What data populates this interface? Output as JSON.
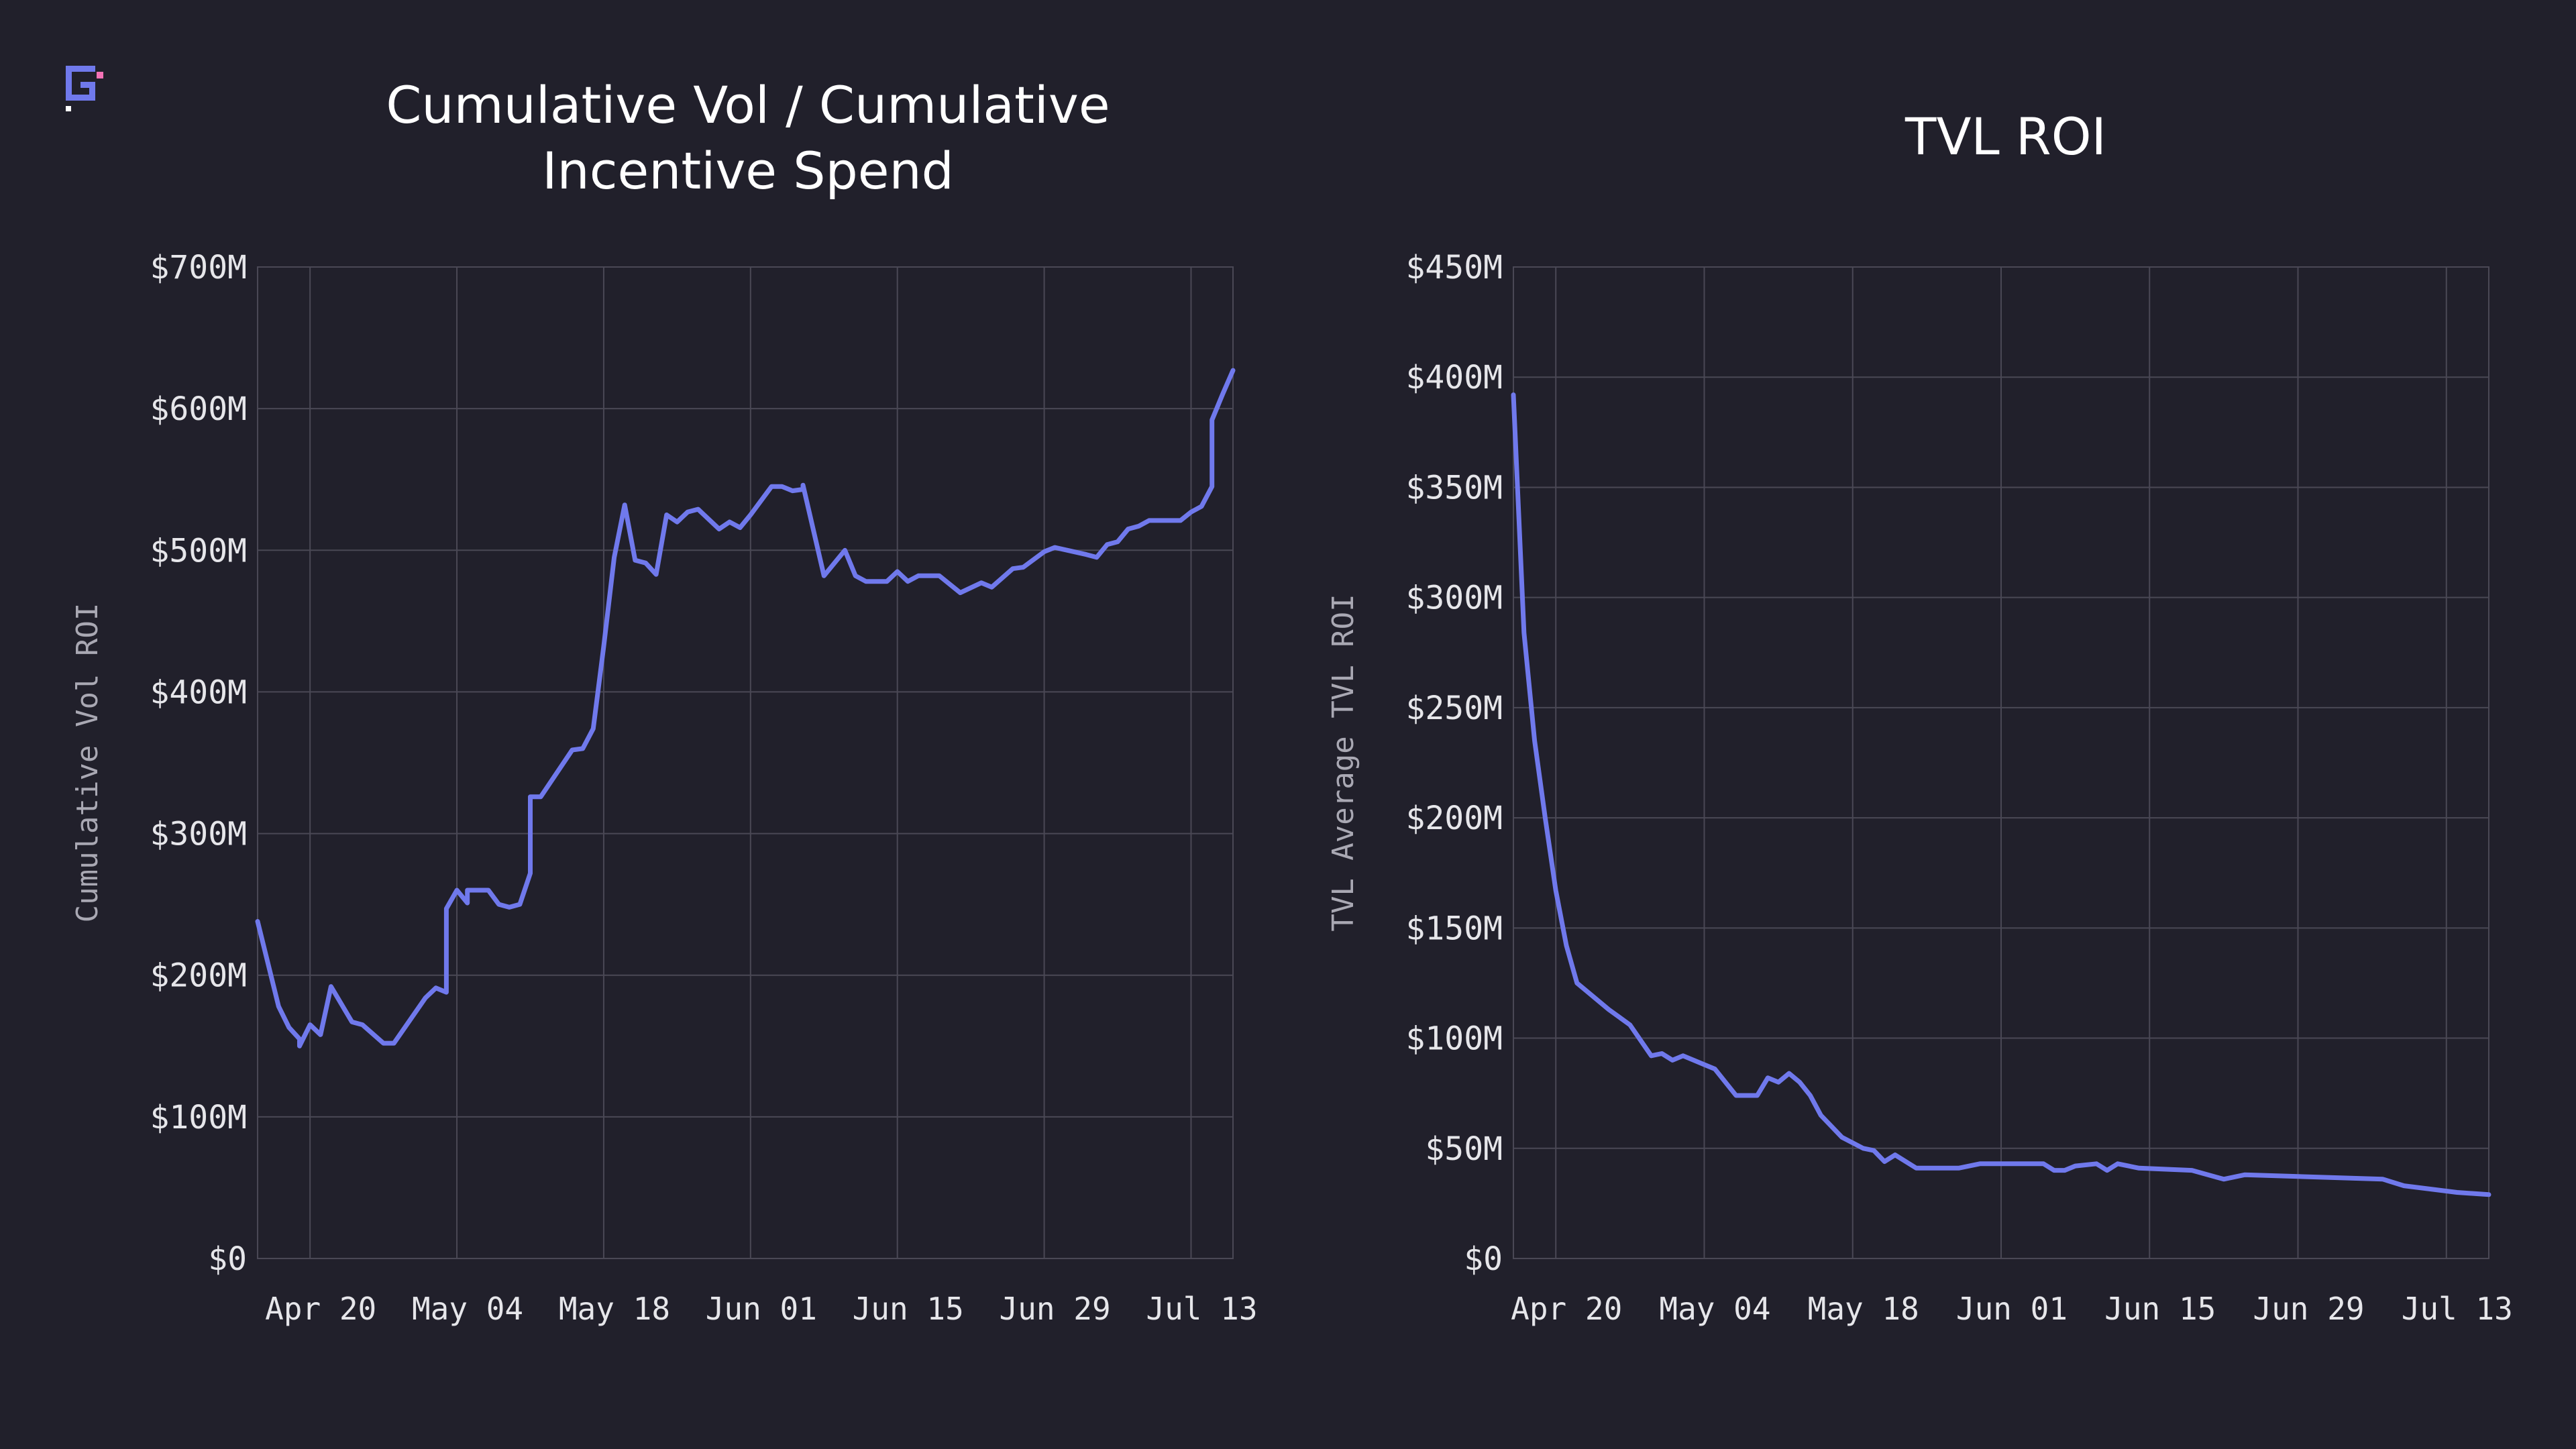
{
  "colors": {
    "background": "#21202b",
    "line": "#7079ec",
    "grid": "#4a4855",
    "text": "#e6e6ea",
    "title": "#ffffff",
    "logo_primary": "#7079ec",
    "logo_accent": "#f472b6"
  },
  "logo": {
    "icon": "brand-logo-icon"
  },
  "chart_data": [
    {
      "type": "line",
      "title": "Cumulative Vol / Cumulative Incentive Spend",
      "title_lines": [
        "Cumulative Vol / Cumulative",
        "Incentive Spend"
      ],
      "xlabel": "",
      "ylabel": "Cumulative Vol ROI",
      "x_axis": {
        "type": "date",
        "range": [
          "2025-04-15",
          "2025-07-17"
        ],
        "ticks": [
          {
            "date": "2025-04-20",
            "label": "Apr 20"
          },
          {
            "date": "2025-05-04",
            "label": "May 04"
          },
          {
            "date": "2025-05-18",
            "label": "May 18"
          },
          {
            "date": "2025-06-01",
            "label": "Jun 01"
          },
          {
            "date": "2025-06-15",
            "label": "Jun 15"
          },
          {
            "date": "2025-06-29",
            "label": "Jun 29"
          },
          {
            "date": "2025-07-13",
            "label": "Jul 13"
          }
        ]
      },
      "y_axis": {
        "range": [
          0,
          700
        ],
        "unit": "$M",
        "ticks": [
          {
            "value": 0,
            "label": "$0"
          },
          {
            "value": 100,
            "label": "$100M"
          },
          {
            "value": 200,
            "label": "$200M"
          },
          {
            "value": 300,
            "label": "$300M"
          },
          {
            "value": 400,
            "label": "$400M"
          },
          {
            "value": 500,
            "label": "$500M"
          },
          {
            "value": 600,
            "label": "$600M"
          },
          {
            "value": 700,
            "label": "$700M"
          }
        ]
      },
      "grid": true,
      "legend": "none",
      "series": [
        {
          "points": [
            [
              "2025-04-15",
              238
            ],
            [
              "2025-04-17",
              178
            ],
            [
              "2025-04-18",
              163
            ],
            [
              "2025-04-19",
              155
            ],
            [
              "2025-04-19",
              150
            ],
            [
              "2025-04-20",
              165
            ],
            [
              "2025-04-21",
              158
            ],
            [
              "2025-04-22",
              192
            ],
            [
              "2025-04-24",
              167
            ],
            [
              "2025-04-25",
              165
            ],
            [
              "2025-04-27",
              152
            ],
            [
              "2025-04-28",
              152
            ],
            [
              "2025-05-01",
              184
            ],
            [
              "2025-05-02",
              191
            ],
            [
              "2025-05-03",
              188
            ],
            [
              "2025-05-03",
              247
            ],
            [
              "2025-05-04",
              260
            ],
            [
              "2025-05-05",
              251
            ],
            [
              "2025-05-05",
              260
            ],
            [
              "2025-05-07",
              260
            ],
            [
              "2025-05-08",
              250
            ],
            [
              "2025-05-09",
              248
            ],
            [
              "2025-05-10",
              250
            ],
            [
              "2025-05-11",
              272
            ],
            [
              "2025-05-11",
              326
            ],
            [
              "2025-05-12",
              326
            ],
            [
              "2025-05-15",
              359
            ],
            [
              "2025-05-16",
              360
            ],
            [
              "2025-05-17",
              374
            ],
            [
              "2025-05-18",
              432
            ],
            [
              "2025-05-19",
              495
            ],
            [
              "2025-05-20",
              532
            ],
            [
              "2025-05-21",
              493
            ],
            [
              "2025-05-22",
              491
            ],
            [
              "2025-05-23",
              483
            ],
            [
              "2025-05-24",
              525
            ],
            [
              "2025-05-25",
              520
            ],
            [
              "2025-05-26",
              527
            ],
            [
              "2025-05-27",
              529
            ],
            [
              "2025-05-29",
              515
            ],
            [
              "2025-05-30",
              520
            ],
            [
              "2025-05-31",
              516
            ],
            [
              "2025-06-01",
              525
            ],
            [
              "2025-06-03",
              545
            ],
            [
              "2025-06-04",
              545
            ],
            [
              "2025-06-05",
              542
            ],
            [
              "2025-06-06",
              543
            ],
            [
              "2025-06-06",
              546
            ],
            [
              "2025-06-08",
              482
            ],
            [
              "2025-06-10",
              500
            ],
            [
              "2025-06-11",
              482
            ],
            [
              "2025-06-12",
              478
            ],
            [
              "2025-06-14",
              478
            ],
            [
              "2025-06-15",
              485
            ],
            [
              "2025-06-16",
              478
            ],
            [
              "2025-06-17",
              482
            ],
            [
              "2025-06-19",
              482
            ],
            [
              "2025-06-21",
              470
            ],
            [
              "2025-06-23",
              477
            ],
            [
              "2025-06-24",
              474
            ],
            [
              "2025-06-26",
              487
            ],
            [
              "2025-06-27",
              488
            ],
            [
              "2025-06-29",
              499
            ],
            [
              "2025-06-30",
              502
            ],
            [
              "2025-07-03",
              497
            ],
            [
              "2025-07-04",
              495
            ],
            [
              "2025-07-05",
              504
            ],
            [
              "2025-07-06",
              506
            ],
            [
              "2025-07-07",
              515
            ],
            [
              "2025-07-08",
              517
            ],
            [
              "2025-07-09",
              521
            ],
            [
              "2025-07-12",
              521
            ],
            [
              "2025-07-13",
              527
            ],
            [
              "2025-07-14",
              531
            ],
            [
              "2025-07-15",
              545
            ],
            [
              "2025-07-15",
              592
            ],
            [
              "2025-07-16",
              610
            ],
            [
              "2025-07-17",
              627
            ]
          ]
        }
      ]
    },
    {
      "type": "line",
      "title": "TVL ROI",
      "xlabel": "",
      "ylabel": "TVL Average TVL ROI",
      "x_axis": {
        "type": "date",
        "range": [
          "2025-04-16",
          "2025-07-17"
        ],
        "ticks": [
          {
            "date": "2025-04-20",
            "label": "Apr 20"
          },
          {
            "date": "2025-05-04",
            "label": "May 04"
          },
          {
            "date": "2025-05-18",
            "label": "May 18"
          },
          {
            "date": "2025-06-01",
            "label": "Jun 01"
          },
          {
            "date": "2025-06-15",
            "label": "Jun 15"
          },
          {
            "date": "2025-06-29",
            "label": "Jun 29"
          },
          {
            "date": "2025-07-13",
            "label": "Jul 13"
          }
        ]
      },
      "y_axis": {
        "range": [
          0,
          450
        ],
        "unit": "$M",
        "ticks": [
          {
            "value": 0,
            "label": "$0"
          },
          {
            "value": 50,
            "label": "$50M"
          },
          {
            "value": 100,
            "label": "$100M"
          },
          {
            "value": 150,
            "label": "$150M"
          },
          {
            "value": 200,
            "label": "$200M"
          },
          {
            "value": 250,
            "label": "$250M"
          },
          {
            "value": 300,
            "label": "$300M"
          },
          {
            "value": 350,
            "label": "$350M"
          },
          {
            "value": 400,
            "label": "$400M"
          },
          {
            "value": 450,
            "label": "$450M"
          }
        ]
      },
      "grid": true,
      "legend": "none",
      "series": [
        {
          "points": [
            [
              "2025-04-16",
              392
            ],
            [
              "2025-04-17",
              284
            ],
            [
              "2025-04-18",
              235
            ],
            [
              "2025-04-19",
              200
            ],
            [
              "2025-04-20",
              167
            ],
            [
              "2025-04-21",
              142
            ],
            [
              "2025-04-22",
              125
            ],
            [
              "2025-04-23",
              121
            ],
            [
              "2025-04-25",
              113
            ],
            [
              "2025-04-27",
              106
            ],
            [
              "2025-04-29",
              92
            ],
            [
              "2025-04-30",
              93
            ],
            [
              "2025-05-01",
              90
            ],
            [
              "2025-05-02",
              92
            ],
            [
              "2025-05-04",
              88
            ],
            [
              "2025-05-05",
              86
            ],
            [
              "2025-05-07",
              74
            ],
            [
              "2025-05-09",
              74
            ],
            [
              "2025-05-10",
              82
            ],
            [
              "2025-05-11",
              80
            ],
            [
              "2025-05-12",
              84
            ],
            [
              "2025-05-13",
              80
            ],
            [
              "2025-05-14",
              74
            ],
            [
              "2025-05-15",
              65
            ],
            [
              "2025-05-17",
              55
            ],
            [
              "2025-05-19",
              50
            ],
            [
              "2025-05-20",
              49
            ],
            [
              "2025-05-21",
              44
            ],
            [
              "2025-05-22",
              47
            ],
            [
              "2025-05-24",
              41
            ],
            [
              "2025-05-28",
              41
            ],
            [
              "2025-05-30",
              43
            ],
            [
              "2025-06-05",
              43
            ],
            [
              "2025-06-06",
              40
            ],
            [
              "2025-06-07",
              40
            ],
            [
              "2025-06-08",
              42
            ],
            [
              "2025-06-10",
              43
            ],
            [
              "2025-06-11",
              40
            ],
            [
              "2025-06-12",
              43
            ],
            [
              "2025-06-14",
              41
            ],
            [
              "2025-06-19",
              40
            ],
            [
              "2025-06-22",
              36
            ],
            [
              "2025-06-24",
              38
            ],
            [
              "2025-07-07",
              36
            ],
            [
              "2025-07-09",
              33
            ],
            [
              "2025-07-14",
              30
            ],
            [
              "2025-07-17",
              29
            ]
          ]
        }
      ]
    }
  ]
}
